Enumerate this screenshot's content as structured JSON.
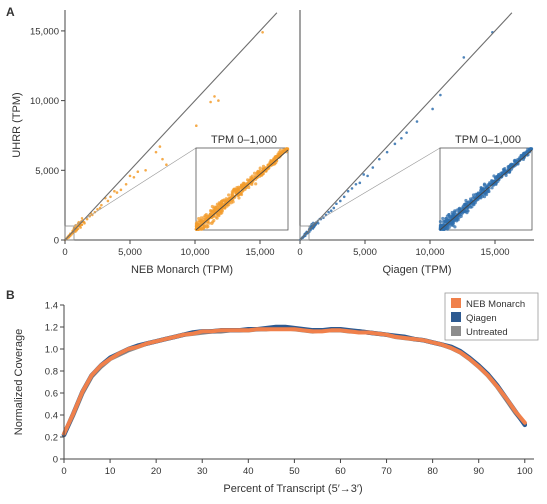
{
  "panel_labels": {
    "a": "A",
    "b": "B"
  },
  "colors": {
    "orange": "#f39c2c",
    "blue": "#2f6fae",
    "line": "#6e6e6e",
    "nebMonarch": "#f0804b",
    "qiagen": "#2d5a91",
    "untreated": "#8c8c8c"
  },
  "chart_data": [
    {
      "type": "scatter",
      "panel": "A-left",
      "xlabel": "NEB Monarch (TPM)",
      "ylabel": "UHRR (TPM)",
      "xlim": [
        0,
        18000
      ],
      "ylim": [
        0,
        16500
      ],
      "x_ticks": [
        "0",
        "5,000",
        "10,000",
        "15,000"
      ],
      "y_ticks": [
        "0",
        "5,000",
        "10,000",
        "15,000"
      ],
      "inset_title": "TPM 0–1,000",
      "color": "#f39c2c",
      "points": [
        [
          15200,
          14900
        ],
        [
          11500,
          10300
        ],
        [
          11800,
          10000
        ],
        [
          11200,
          9900
        ],
        [
          10100,
          8200
        ],
        [
          7300,
          6700
        ],
        [
          7000,
          6300
        ],
        [
          7500,
          5800
        ],
        [
          7800,
          5400
        ],
        [
          6200,
          5000
        ],
        [
          5600,
          4900
        ],
        [
          5300,
          4500
        ],
        [
          5000,
          4600
        ],
        [
          4700,
          4000
        ],
        [
          4300,
          3600
        ],
        [
          4000,
          3400
        ],
        [
          3800,
          3500
        ],
        [
          3500,
          3100
        ],
        [
          3300,
          2800
        ],
        [
          3100,
          3000
        ],
        [
          2800,
          2500
        ],
        [
          2700,
          2300
        ],
        [
          2500,
          2200
        ],
        [
          2300,
          2000
        ],
        [
          2100,
          1800
        ],
        [
          2000,
          1900
        ],
        [
          1900,
          1700
        ],
        [
          1700,
          1500
        ],
        [
          1500,
          1200
        ],
        [
          1400,
          1300
        ],
        [
          1300,
          1100
        ],
        [
          1200,
          900
        ],
        [
          1100,
          1000
        ],
        [
          1000,
          800
        ],
        [
          900,
          700
        ],
        [
          800,
          600
        ],
        [
          700,
          700
        ],
        [
          600,
          500
        ],
        [
          500,
          400
        ],
        [
          400,
          300
        ],
        [
          300,
          200
        ],
        [
          200,
          150
        ]
      ]
    },
    {
      "type": "scatter",
      "panel": "A-right",
      "xlabel": "Qiagen (TPM)",
      "xlim": [
        0,
        18000
      ],
      "ylim": [
        0,
        16500
      ],
      "x_ticks": [
        "0",
        "5,000",
        "10,000",
        "15,000"
      ],
      "inset_title": "TPM 0–1,000",
      "color": "#2f6fae",
      "points": [
        [
          14800,
          14900
        ],
        [
          12600,
          13100
        ],
        [
          10800,
          10400
        ],
        [
          10200,
          9400
        ],
        [
          9000,
          8500
        ],
        [
          8200,
          7700
        ],
        [
          7800,
          7300
        ],
        [
          7300,
          6900
        ],
        [
          6700,
          6300
        ],
        [
          6100,
          5800
        ],
        [
          5600,
          5200
        ],
        [
          5200,
          4600
        ],
        [
          4900,
          4700
        ],
        [
          4600,
          4100
        ],
        [
          4300,
          4000
        ],
        [
          4000,
          3700
        ],
        [
          3700,
          3500
        ],
        [
          3400,
          3100
        ],
        [
          3100,
          2800
        ],
        [
          2800,
          2600
        ],
        [
          2600,
          2300
        ],
        [
          2400,
          2100
        ],
        [
          2200,
          2000
        ],
        [
          2000,
          1800
        ],
        [
          1800,
          1600
        ],
        [
          1600,
          1500
        ],
        [
          1400,
          1200
        ],
        [
          1200,
          1100
        ],
        [
          1000,
          900
        ],
        [
          800,
          700
        ],
        [
          600,
          500
        ],
        [
          400,
          300
        ],
        [
          200,
          150
        ]
      ]
    },
    {
      "type": "line",
      "panel": "B",
      "xlabel": "Percent of Transcript (5′→3′)",
      "ylabel": "Normalized Coverage",
      "xlim": [
        0,
        102
      ],
      "ylim": [
        0,
        1.4
      ],
      "x_ticks": [
        "0",
        "10",
        "20",
        "30",
        "40",
        "50",
        "60",
        "70",
        "80",
        "90",
        "100"
      ],
      "y_ticks": [
        "0",
        "0.2",
        "0.4",
        "0.6",
        "0.8",
        "1.0",
        "1.2",
        "1.4"
      ],
      "legend": "top-right",
      "x": [
        0,
        2,
        4,
        6,
        8,
        10,
        12,
        14,
        16,
        18,
        20,
        22,
        24,
        26,
        28,
        30,
        32,
        34,
        36,
        38,
        40,
        42,
        44,
        46,
        48,
        50,
        52,
        54,
        56,
        58,
        60,
        62,
        64,
        66,
        68,
        70,
        72,
        74,
        76,
        78,
        80,
        82,
        84,
        86,
        88,
        90,
        92,
        94,
        96,
        98,
        100
      ],
      "series": [
        {
          "name": "Untreated",
          "color": "#8c8c8c",
          "values": [
            0.22,
            0.4,
            0.6,
            0.75,
            0.84,
            0.91,
            0.95,
            0.99,
            1.02,
            1.05,
            1.07,
            1.09,
            1.11,
            1.13,
            1.14,
            1.15,
            1.16,
            1.16,
            1.17,
            1.17,
            1.17,
            1.18,
            1.18,
            1.19,
            1.19,
            1.18,
            1.17,
            1.16,
            1.17,
            1.17,
            1.17,
            1.16,
            1.16,
            1.15,
            1.14,
            1.13,
            1.11,
            1.1,
            1.09,
            1.08,
            1.06,
            1.04,
            1.01,
            0.97,
            0.91,
            0.84,
            0.76,
            0.66,
            0.54,
            0.42,
            0.32
          ]
        },
        {
          "name": "Qiagen",
          "color": "#2d5a91",
          "values": [
            0.22,
            0.41,
            0.61,
            0.76,
            0.85,
            0.92,
            0.96,
            1.0,
            1.03,
            1.05,
            1.07,
            1.09,
            1.11,
            1.13,
            1.15,
            1.16,
            1.16,
            1.17,
            1.17,
            1.17,
            1.18,
            1.18,
            1.19,
            1.2,
            1.2,
            1.19,
            1.18,
            1.17,
            1.17,
            1.18,
            1.18,
            1.17,
            1.16,
            1.15,
            1.14,
            1.13,
            1.12,
            1.11,
            1.09,
            1.08,
            1.06,
            1.04,
            1.02,
            0.98,
            0.92,
            0.85,
            0.77,
            0.67,
            0.55,
            0.43,
            0.31
          ]
        },
        {
          "name": "NEB Monarch",
          "color": "#f0804b",
          "values": [
            0.23,
            0.41,
            0.61,
            0.76,
            0.85,
            0.91,
            0.96,
            1.0,
            1.02,
            1.05,
            1.07,
            1.09,
            1.11,
            1.13,
            1.14,
            1.16,
            1.16,
            1.17,
            1.17,
            1.17,
            1.17,
            1.18,
            1.18,
            1.18,
            1.18,
            1.18,
            1.17,
            1.16,
            1.16,
            1.17,
            1.17,
            1.16,
            1.15,
            1.15,
            1.14,
            1.13,
            1.11,
            1.1,
            1.09,
            1.08,
            1.06,
            1.04,
            1.01,
            0.97,
            0.91,
            0.84,
            0.76,
            0.66,
            0.55,
            0.43,
            0.33
          ]
        }
      ]
    }
  ]
}
